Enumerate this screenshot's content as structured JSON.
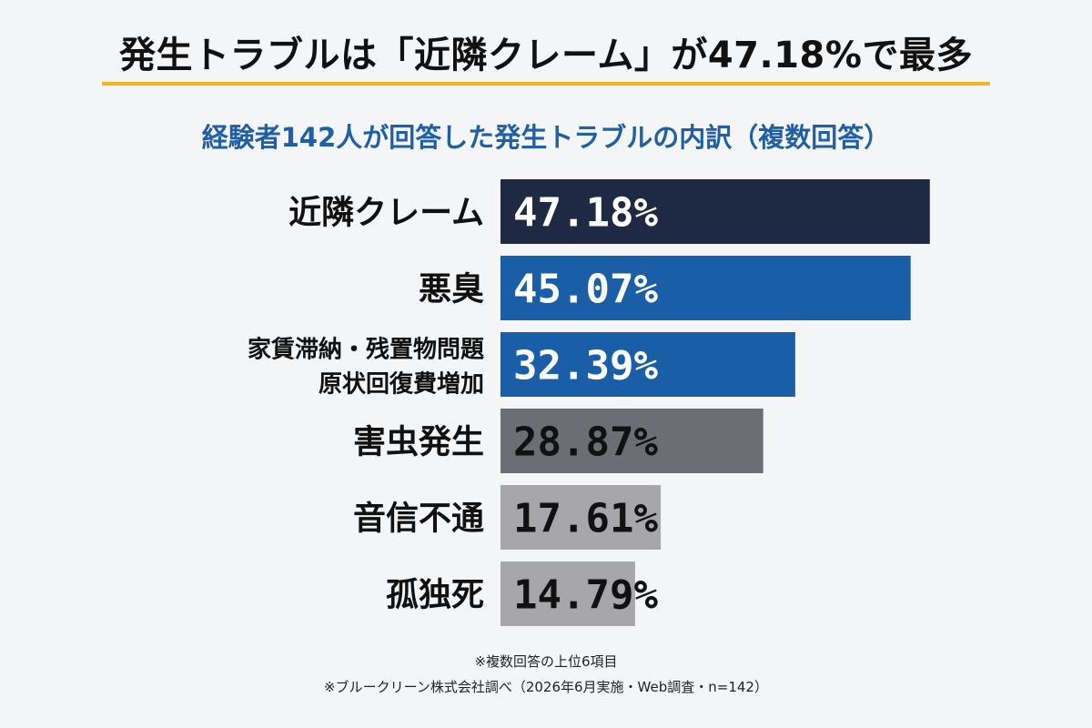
{
  "title": "発生トラブルは「近隣クレーム」が47.18%で最多",
  "subtitle": "経験者142人が回答した発生トラブルの内訳（複数回答）",
  "footnotes": [
    "※複数回答の上位6項目",
    "※ブルークリーン株式会社調べ（2026年6月実施・Web調査・n=142）"
  ],
  "colors": {
    "accent_rule": "#f2b61c",
    "subtitle": "#1f5fa6"
  },
  "chart_data": {
    "type": "bar",
    "orientation": "horizontal",
    "categories": [
      [
        "近隣クレーム"
      ],
      [
        "悪臭"
      ],
      [
        "家賃滞納・残置物問題",
        "原状回復費増加"
      ],
      [
        "害虫発生"
      ],
      [
        "音信不通"
      ],
      [
        "孤独死"
      ]
    ],
    "values": [
      47.18,
      45.07,
      32.39,
      28.87,
      17.61,
      14.79
    ],
    "value_labels": [
      "47.18%",
      "45.07%",
      "32.39%",
      "28.87%",
      "17.61%",
      "14.79%"
    ],
    "bar_colors": [
      "#1e2a44",
      "#1a5ea8",
      "#1a5ea8",
      "#6b6e74",
      "#a7a6aa",
      "#a7a6aa"
    ],
    "label_colors": [
      "#ffffff",
      "#ffffff",
      "#ffffff",
      "#111111",
      "#111111",
      "#111111"
    ],
    "xlim": [
      0,
      50
    ],
    "grid": false,
    "legend": "none"
  }
}
